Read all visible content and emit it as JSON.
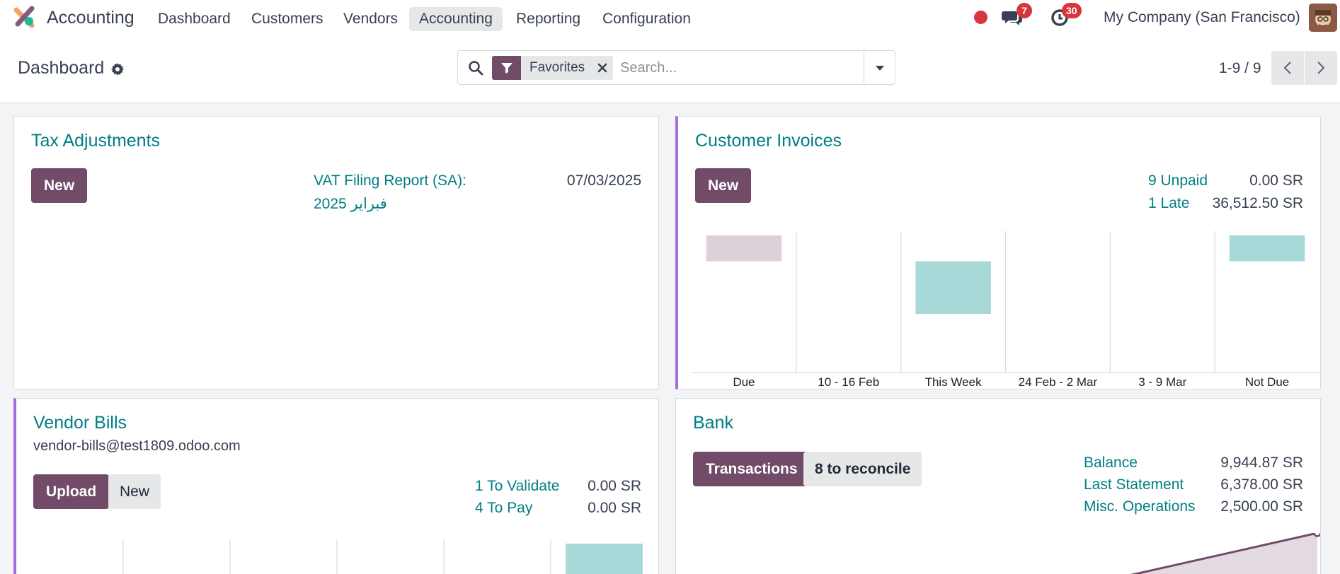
{
  "navbar": {
    "app_name": "Accounting",
    "menu": [
      "Dashboard",
      "Customers",
      "Vendors",
      "Accounting",
      "Reporting",
      "Configuration"
    ],
    "active_menu": "Accounting",
    "messages_badge": "7",
    "activities_badge": "30",
    "company": "My Company (San Francisco)"
  },
  "control_panel": {
    "title": "Dashboard",
    "facet_label": "Favorites",
    "search_placeholder": "Search...",
    "pager": "1-9 / 9"
  },
  "colors": {
    "brand": "#714b67",
    "link": "#017e84",
    "bar_teal": "#a6d9d7",
    "bar_pink": "#dcd0da",
    "badge_red": "#d6363c"
  },
  "tax_adjustments": {
    "title": "Tax Adjustments",
    "new_label": "New",
    "report_line1": "VAT Filing Report (SA):",
    "report_line2": "فبراير 2025",
    "report_date": "07/03/2025"
  },
  "customer_invoices": {
    "title": "Customer Invoices",
    "new_label": "New",
    "stats": [
      {
        "label": "9 Unpaid",
        "value": "0.00 SR"
      },
      {
        "label": "1 Late",
        "value": "36,512.50 SR"
      }
    ]
  },
  "vendor_bills": {
    "title": "Vendor Bills",
    "email": "vendor-bills@test1809.odoo.com",
    "upload_label": "Upload",
    "new_label": "New",
    "stats": [
      {
        "label": "1 To Validate",
        "value": "0.00 SR"
      },
      {
        "label": "4 To Pay",
        "value": "0.00 SR"
      }
    ]
  },
  "bank": {
    "title": "Bank",
    "transactions_label": "Transactions",
    "reconcile_label": "8 to reconcile",
    "stats": [
      {
        "label": "Balance",
        "value": "9,944.87 SR"
      },
      {
        "label": "Last Statement",
        "value": "6,378.00 SR"
      },
      {
        "label": "Misc. Operations",
        "value": "2,500.00 SR"
      }
    ]
  },
  "chart_data": [
    {
      "type": "bar",
      "chart": "customer_invoices",
      "categories": [
        "Due",
        "10 - 16 Feb",
        "This Week",
        "24 Feb - 2 Mar",
        "3 - 9 Mar",
        "Not Due"
      ],
      "bars": [
        {
          "from": 0.67,
          "to": 1.0,
          "color": "#dcd0da"
        },
        null,
        {
          "from": 0.0,
          "to": 0.67,
          "color": "#a6d9d7"
        },
        null,
        null,
        {
          "from": 0.67,
          "to": 1.0,
          "color": "#a6d9d7"
        }
      ],
      "grid": true
    },
    {
      "type": "bar",
      "chart": "vendor_bills",
      "categories": [
        "",
        "",
        "",
        "",
        "",
        ""
      ],
      "bars": [
        null,
        null,
        null,
        null,
        null,
        {
          "from": 0.0,
          "to": 1.0,
          "color": "#a6d9d7"
        }
      ],
      "grid": true
    },
    {
      "type": "area",
      "chart": "bank",
      "trend": "rising",
      "line_color": "#714b67",
      "fill_color": "#e4dae2"
    }
  ]
}
